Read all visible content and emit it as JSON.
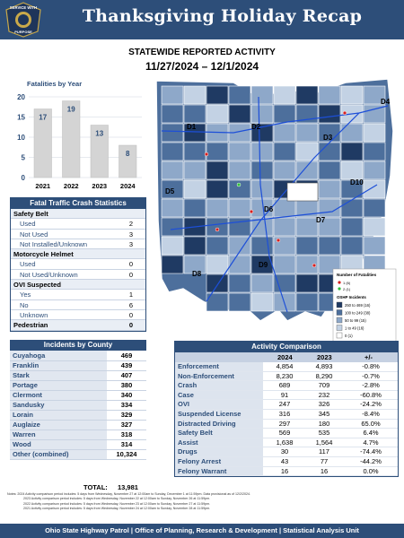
{
  "header": {
    "title": "Thanksgiving Holiday Recap",
    "badge_top": "SERVICE WITH",
    "badge_bottom": "PURPOSE"
  },
  "subtitle": {
    "line1": "STATEWIDE REPORTED ACTIVITY",
    "line2": "11/27/2024 – 12/1/2024"
  },
  "chart_data": {
    "type": "bar",
    "title": "Fatalities by Year",
    "categories": [
      "2021",
      "2022",
      "2023",
      "2024"
    ],
    "values": [
      17,
      19,
      13,
      8
    ],
    "ylim": [
      0,
      20
    ],
    "yticks": [
      0,
      5,
      10,
      15,
      20
    ],
    "grid": true
  },
  "fatal_stats": {
    "title": "Fatal Traffic Crash Statistics",
    "rows": [
      {
        "label": "Safety Belt",
        "value": "",
        "kind": "cat"
      },
      {
        "label": "Used",
        "value": "2",
        "kind": "sub"
      },
      {
        "label": "Not Used",
        "value": "3",
        "kind": "sub"
      },
      {
        "label": "Not Installed/Unknown",
        "value": "3",
        "kind": "sub"
      },
      {
        "label": "Motorcycle Helmet",
        "value": "",
        "kind": "cat"
      },
      {
        "label": "Used",
        "value": "0",
        "kind": "sub"
      },
      {
        "label": "Not Used/Unknown",
        "value": "0",
        "kind": "sub"
      },
      {
        "label": "OVI Suspected",
        "value": "",
        "kind": "cat"
      },
      {
        "label": "Yes",
        "value": "1",
        "kind": "sub"
      },
      {
        "label": "No",
        "value": "6",
        "kind": "sub"
      },
      {
        "label": "Unknown",
        "value": "0",
        "kind": "sub"
      },
      {
        "label": "Pedestrian",
        "value": "0",
        "kind": "cat"
      }
    ]
  },
  "incidents_by_county": {
    "title": "Incidents by County",
    "rows": [
      {
        "name": "Cuyahoga",
        "value": "469"
      },
      {
        "name": "Franklin",
        "value": "439"
      },
      {
        "name": "Stark",
        "value": "407"
      },
      {
        "name": "Portage",
        "value": "380"
      },
      {
        "name": "Clermont",
        "value": "340"
      },
      {
        "name": "Sandusky",
        "value": "334"
      },
      {
        "name": "Lorain",
        "value": "329"
      },
      {
        "name": "Auglaize",
        "value": "327"
      },
      {
        "name": "Warren",
        "value": "318"
      },
      {
        "name": "Wood",
        "value": "314"
      },
      {
        "name": "Other (combined)",
        "value": "10,324"
      }
    ],
    "total_label": "TOTAL:",
    "total_value": "13,981"
  },
  "activity": {
    "title": "Activity Comparison",
    "col_2024": "2024",
    "col_2023": "2023",
    "col_change": "+/-",
    "rows": [
      {
        "label": "Enforcement",
        "v2024": "4,854",
        "v2023": "4,893",
        "change": "-0.8%"
      },
      {
        "label": "Non-Enforcement",
        "v2024": "8,230",
        "v2023": "8,290",
        "change": "-0.7%"
      },
      {
        "label": "Crash",
        "v2024": "689",
        "v2023": "709",
        "change": "-2.8%"
      },
      {
        "label": "Case",
        "v2024": "91",
        "v2023": "232",
        "change": "-60.8%"
      },
      {
        "label": "OVI",
        "v2024": "247",
        "v2023": "326",
        "change": "-24.2%"
      },
      {
        "label": "Suspended License",
        "v2024": "316",
        "v2023": "345",
        "change": "-8.4%"
      },
      {
        "label": "Distracted Driving",
        "v2024": "297",
        "v2023": "180",
        "change": "65.0%"
      },
      {
        "label": "Safety Belt",
        "v2024": "569",
        "v2023": "535",
        "change": "6.4%"
      },
      {
        "label": "Assist",
        "v2024": "1,638",
        "v2023": "1,564",
        "change": "4.7%"
      },
      {
        "label": "Drugs",
        "v2024": "30",
        "v2023": "117",
        "change": "-74.4%"
      },
      {
        "label": "Felony Arrest",
        "v2024": "43",
        "v2023": "77",
        "change": "-44.2%"
      },
      {
        "label": "Felony Warrant",
        "v2024": "16",
        "v2023": "16",
        "change": "0.0%"
      }
    ]
  },
  "map": {
    "districts": [
      "D1",
      "D2",
      "D3",
      "D4",
      "D5",
      "D6",
      "D7",
      "D8",
      "D9",
      "D10"
    ],
    "legend_title": "Number of Fatalities",
    "legend_fatal_1": "1 (6)",
    "legend_fatal_2": "2 (1)",
    "legend_incidents_title": "OSHP Incidents",
    "legend_ranges": [
      "250 to 469 (16)",
      "100 to 249 (38)",
      "50 to 99 (15)",
      "1 to 49 (16)",
      "0 (1)"
    ],
    "colors": {
      "dark": "#1f3a63",
      "mid": "#4d6f9c",
      "light": "#8ea8c9",
      "pale": "#c3d2e4",
      "zero": "#ffffff"
    }
  },
  "notes": [
    "Notes: 2024 Activity comparison period includes: 5 days from Wednesday, November 27 at 12:00am to Sunday, December 1 at 11:59pm. Data provisional as of 12/2/2024.",
    "2023 Activity comparison period includes: 5 days from Wednesday, November 22 at 12:00am to Sunday, November 26 at 11:59pm.",
    "2022 Activity comparison period includes: 5 days from Wednesday, November 23 at 12:00am to Sunday, November 27 at 11:59pm.",
    "2021 Activity comparison period includes: 5 days from Wednesday, November 24 at 12:00am to Sunday, November 28 at 11:59pm."
  ],
  "footer": "Ohio State Highway Patrol | Office of Planning, Research & Development | Statistical Analysis Unit"
}
